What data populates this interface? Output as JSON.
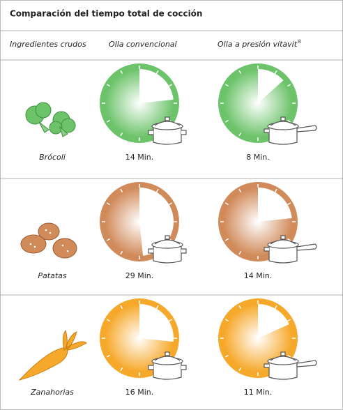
{
  "header": {
    "title": "Comparación del tiempo total de cocción"
  },
  "columns": [
    {
      "text": "Ingredientes crudos"
    },
    {
      "text": "Olla convencional"
    },
    {
      "text": "Olla a presión vitavit",
      "sup": "®"
    }
  ],
  "rows": [
    {
      "label": "Brócoli",
      "color": "#6cc36a",
      "times": [
        14,
        8
      ],
      "time_labels": [
        "14 Min.",
        "8 Min."
      ]
    },
    {
      "label": "Patatas",
      "color": "#d18b5b",
      "times": [
        29,
        14
      ],
      "time_labels": [
        "29 Min.",
        "14 Min."
      ]
    },
    {
      "label": "Zanahorias",
      "color": "#f6a82a",
      "times": [
        16,
        11
      ],
      "time_labels": [
        "16 Min.",
        "11 Min."
      ]
    }
  ]
}
